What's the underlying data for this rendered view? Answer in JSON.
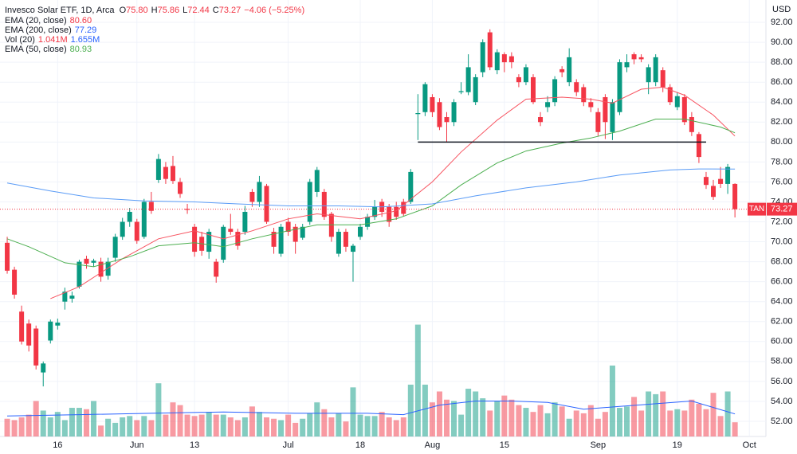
{
  "chart_data": {
    "type": "candlestick",
    "header": {
      "title": "Invesco Solar ETF, 1D, Arca",
      "ohlc": [
        {
          "key": "O",
          "value": "75.80"
        },
        {
          "key": "H",
          "value": "75.86"
        },
        {
          "key": "L",
          "value": "72.44"
        },
        {
          "key": "C",
          "value": "73.27"
        }
      ],
      "change": "−4.06 (−5.25%)"
    },
    "legend": [
      {
        "name": "EMA (20, close)",
        "values": [
          "80.60"
        ],
        "color": "#f23645"
      },
      {
        "name": "EMA (200, close)",
        "values": [
          "77.29"
        ],
        "color": "#2962ff"
      },
      {
        "name": "Vol (20)",
        "values": [
          "1.041M",
          "1.655M"
        ],
        "color": "#2962ff"
      },
      {
        "name": "EMA (50, close)",
        "values": [
          "80.93"
        ],
        "color": "#4caf50"
      }
    ],
    "currency": "USD",
    "up_color": "#089981",
    "down_color": "#f23645",
    "xlim": [
      -1,
      105.3
    ],
    "ylim": [
      50.48,
      94.24
    ],
    "vlim": [
      0,
      32
    ],
    "yticks": [
      {
        "value": 52,
        "label": "52.00"
      },
      {
        "value": 54,
        "label": "54.00"
      },
      {
        "value": 56,
        "label": "56.00"
      },
      {
        "value": 58,
        "label": "58.00"
      },
      {
        "value": 60,
        "label": "60.00"
      },
      {
        "value": 62,
        "label": "62.00"
      },
      {
        "value": 64,
        "label": "64.00"
      },
      {
        "value": 66,
        "label": "66.00"
      },
      {
        "value": 68,
        "label": "68.00"
      },
      {
        "value": 70,
        "label": "70.00"
      },
      {
        "value": 72,
        "label": "72.00"
      },
      {
        "value": 74,
        "label": "74.00"
      },
      {
        "value": 76,
        "label": "76.00"
      },
      {
        "value": 78,
        "label": "78.00"
      },
      {
        "value": 80,
        "label": "80.00"
      },
      {
        "value": 82,
        "label": "82.00"
      },
      {
        "value": 84,
        "label": "84.00"
      },
      {
        "value": 86,
        "label": "86.00"
      },
      {
        "value": 88,
        "label": "88.00"
      },
      {
        "value": 90,
        "label": "90.00"
      },
      {
        "value": 92,
        "label": "92.00"
      }
    ],
    "xticks": [
      {
        "value": 7,
        "label": "16"
      },
      {
        "value": 18,
        "label": "Jun"
      },
      {
        "value": 26,
        "label": "13"
      },
      {
        "value": 39,
        "label": "Jul"
      },
      {
        "value": 49,
        "label": "18"
      },
      {
        "value": 59,
        "label": "Aug"
      },
      {
        "value": 69,
        "label": "15"
      },
      {
        "value": 82,
        "label": "Sep"
      },
      {
        "value": 93,
        "label": "19"
      },
      {
        "value": 103,
        "label": "Oct"
      }
    ],
    "grid": true,
    "candles": [
      {
        "o": 69.9,
        "h": 70.5,
        "l": 66.8,
        "c": 67.1,
        "v": 1.3
      },
      {
        "o": 67.2,
        "h": 67.5,
        "l": 64.3,
        "c": 64.7,
        "v": 1.2
      },
      {
        "o": 63.0,
        "h": 63.6,
        "l": 59.7,
        "c": 60.0,
        "v": 1.4
      },
      {
        "o": 61.8,
        "h": 62.2,
        "l": 59.0,
        "c": 59.6,
        "v": 1.6
      },
      {
        "o": 61.3,
        "h": 61.6,
        "l": 57.2,
        "c": 57.6,
        "v": 2.6
      },
      {
        "o": 56.9,
        "h": 58.0,
        "l": 55.5,
        "c": 57.8,
        "v": 1.9
      },
      {
        "o": 60.1,
        "h": 62.2,
        "l": 59.8,
        "c": 62.0,
        "v": 1.4
      },
      {
        "o": 61.6,
        "h": 62.3,
        "l": 61.2,
        "c": 61.9,
        "v": 1.8
      },
      {
        "o": 64.0,
        "h": 65.4,
        "l": 63.2,
        "c": 65.0,
        "v": 1.2
      },
      {
        "o": 64.3,
        "h": 65.0,
        "l": 63.9,
        "c": 64.6,
        "v": 2.1
      },
      {
        "o": 65.5,
        "h": 68.2,
        "l": 65.3,
        "c": 68.0,
        "v": 2.1
      },
      {
        "o": 68.3,
        "h": 68.6,
        "l": 67.3,
        "c": 67.8,
        "v": 2.0
      },
      {
        "o": 67.9,
        "h": 68.3,
        "l": 67.5,
        "c": 68.1,
        "v": 2.6
      },
      {
        "o": 68.0,
        "h": 68.4,
        "l": 66.0,
        "c": 66.5,
        "v": 0.8
      },
      {
        "o": 66.6,
        "h": 68.4,
        "l": 66.2,
        "c": 68.0,
        "v": 1.3
      },
      {
        "o": 68.4,
        "h": 70.8,
        "l": 68.0,
        "c": 70.5,
        "v": 1.0
      },
      {
        "o": 70.5,
        "h": 72.4,
        "l": 70.2,
        "c": 72.0,
        "v": 1.4
      },
      {
        "o": 72.0,
        "h": 73.4,
        "l": 71.5,
        "c": 73.0,
        "v": 1.5
      },
      {
        "o": 72.0,
        "h": 72.3,
        "l": 69.8,
        "c": 70.1,
        "v": 1.2
      },
      {
        "o": 70.5,
        "h": 74.3,
        "l": 70.3,
        "c": 74.0,
        "v": 1.5
      },
      {
        "o": 74.0,
        "h": 75.0,
        "l": 72.8,
        "c": 73.1,
        "v": 1.2
      },
      {
        "o": 76.2,
        "h": 78.8,
        "l": 75.9,
        "c": 78.3,
        "v": 3.9
      },
      {
        "o": 77.5,
        "h": 78.0,
        "l": 75.8,
        "c": 76.3,
        "v": 1.6
      },
      {
        "o": 77.6,
        "h": 78.6,
        "l": 75.8,
        "c": 76.1,
        "v": 2.5
      },
      {
        "o": 76.0,
        "h": 76.4,
        "l": 74.4,
        "c": 74.8,
        "v": 2.3
      },
      {
        "o": 73.3,
        "h": 73.8,
        "l": 72.8,
        "c": 73.2,
        "v": 1.6
      },
      {
        "o": 71.5,
        "h": 71.8,
        "l": 68.5,
        "c": 69.0,
        "v": 1.5
      },
      {
        "o": 70.5,
        "h": 71.0,
        "l": 68.6,
        "c": 69.1,
        "v": 1.6
      },
      {
        "o": 69.0,
        "h": 71.3,
        "l": 68.3,
        "c": 71.0,
        "v": 1.8
      },
      {
        "o": 68.0,
        "h": 68.3,
        "l": 65.9,
        "c": 66.5,
        "v": 1.6
      },
      {
        "o": 68.2,
        "h": 71.7,
        "l": 67.9,
        "c": 71.5,
        "v": 1.6
      },
      {
        "o": 71.3,
        "h": 72.8,
        "l": 70.7,
        "c": 71.0,
        "v": 1.4
      },
      {
        "o": 71.0,
        "h": 71.3,
        "l": 69.2,
        "c": 69.6,
        "v": 1.2
      },
      {
        "o": 71.0,
        "h": 73.6,
        "l": 70.7,
        "c": 73.0,
        "v": 1.4
      },
      {
        "o": 75.0,
        "h": 75.3,
        "l": 73.5,
        "c": 74.0,
        "v": 2.2
      },
      {
        "o": 74.0,
        "h": 76.6,
        "l": 73.5,
        "c": 76.0,
        "v": 1.8
      },
      {
        "o": 75.6,
        "h": 75.8,
        "l": 71.8,
        "c": 72.0,
        "v": 1.4
      },
      {
        "o": 71.0,
        "h": 71.4,
        "l": 68.8,
        "c": 69.5,
        "v": 1.3
      },
      {
        "o": 68.8,
        "h": 71.8,
        "l": 68.5,
        "c": 71.5,
        "v": 1.2
      },
      {
        "o": 72.0,
        "h": 72.4,
        "l": 70.6,
        "c": 71.0,
        "v": 1.6
      },
      {
        "o": 71.5,
        "h": 71.8,
        "l": 68.8,
        "c": 70.0,
        "v": 1.0
      },
      {
        "o": 70.4,
        "h": 71.8,
        "l": 70.2,
        "c": 71.5,
        "v": 1.3
      },
      {
        "o": 72.0,
        "h": 76.3,
        "l": 71.7,
        "c": 76.0,
        "v": 1.7
      },
      {
        "o": 75.0,
        "h": 77.5,
        "l": 74.5,
        "c": 77.2,
        "v": 2.5
      },
      {
        "o": 75.0,
        "h": 75.3,
        "l": 72.2,
        "c": 72.5,
        "v": 2.0
      },
      {
        "o": 72.8,
        "h": 73.0,
        "l": 70.0,
        "c": 70.5,
        "v": 1.4
      },
      {
        "o": 68.8,
        "h": 71.3,
        "l": 68.5,
        "c": 71.0,
        "v": 1.7
      },
      {
        "o": 71.0,
        "h": 71.3,
        "l": 69.0,
        "c": 69.5,
        "v": 1.1
      },
      {
        "o": 69.0,
        "h": 69.8,
        "l": 66.0,
        "c": 69.6,
        "v": 3.6
      },
      {
        "o": 70.5,
        "h": 71.8,
        "l": 70.2,
        "c": 71.5,
        "v": 1.6
      },
      {
        "o": 71.5,
        "h": 72.8,
        "l": 71.2,
        "c": 72.5,
        "v": 1.5
      },
      {
        "o": 72.5,
        "h": 74.2,
        "l": 72.2,
        "c": 73.5,
        "v": 1.5
      },
      {
        "o": 74.0,
        "h": 74.3,
        "l": 72.5,
        "c": 73.0,
        "v": 1.8
      },
      {
        "o": 73.5,
        "h": 73.8,
        "l": 71.5,
        "c": 72.0,
        "v": 1.4
      },
      {
        "o": 73.5,
        "h": 74.0,
        "l": 72.2,
        "c": 72.5,
        "v": 1.2
      },
      {
        "o": 74.0,
        "h": 74.3,
        "l": 72.6,
        "c": 72.8,
        "v": 1.4
      },
      {
        "o": 74.0,
        "h": 77.3,
        "l": 73.8,
        "c": 77.0,
        "v": 3.8
      },
      {
        "o": 82.8,
        "h": 84.8,
        "l": 80.2,
        "c": 82.9,
        "v": 8.2
      },
      {
        "o": 83.0,
        "h": 86.0,
        "l": 82.6,
        "c": 85.8,
        "v": 3.8
      },
      {
        "o": 84.5,
        "h": 84.8,
        "l": 82.5,
        "c": 83.0,
        "v": 2.5
      },
      {
        "o": 84.0,
        "h": 84.4,
        "l": 81.2,
        "c": 81.5,
        "v": 3.3
      },
      {
        "o": 82.5,
        "h": 83.0,
        "l": 80.0,
        "c": 82.0,
        "v": 2.7
      },
      {
        "o": 82.0,
        "h": 84.3,
        "l": 81.6,
        "c": 84.0,
        "v": 2.6
      },
      {
        "o": 85.0,
        "h": 86.0,
        "l": 84.8,
        "c": 85.1,
        "v": 1.6
      },
      {
        "o": 85.0,
        "h": 88.8,
        "l": 84.7,
        "c": 87.5,
        "v": 3.5
      },
      {
        "o": 84.0,
        "h": 86.8,
        "l": 83.7,
        "c": 86.5,
        "v": 3.3
      },
      {
        "o": 87.0,
        "h": 90.3,
        "l": 86.5,
        "c": 90.0,
        "v": 2.8
      },
      {
        "o": 91.0,
        "h": 91.3,
        "l": 87.2,
        "c": 87.5,
        "v": 1.9
      },
      {
        "o": 87.2,
        "h": 89.3,
        "l": 86.8,
        "c": 89.0,
        "v": 2.6
      },
      {
        "o": 88.8,
        "h": 89.0,
        "l": 87.0,
        "c": 88.0,
        "v": 3.0
      },
      {
        "o": 88.6,
        "h": 89.0,
        "l": 87.4,
        "c": 88.0,
        "v": 2.7
      },
      {
        "o": 86.5,
        "h": 86.8,
        "l": 85.5,
        "c": 86.0,
        "v": 2.3
      },
      {
        "o": 86.0,
        "h": 87.8,
        "l": 85.7,
        "c": 87.5,
        "v": 2.1
      },
      {
        "o": 86.5,
        "h": 86.8,
        "l": 83.8,
        "c": 84.0,
        "v": 1.8
      },
      {
        "o": 82.5,
        "h": 83.0,
        "l": 81.6,
        "c": 82.0,
        "v": 2.3
      },
      {
        "o": 83.5,
        "h": 84.6,
        "l": 83.0,
        "c": 84.0,
        "v": 1.7
      },
      {
        "o": 84.0,
        "h": 86.6,
        "l": 83.6,
        "c": 86.3,
        "v": 2.5
      },
      {
        "o": 87.3,
        "h": 87.6,
        "l": 86.5,
        "c": 87.0,
        "v": 2.2
      },
      {
        "o": 86.0,
        "h": 89.4,
        "l": 85.6,
        "c": 88.5,
        "v": 1.3
      },
      {
        "o": 86.0,
        "h": 86.3,
        "l": 84.6,
        "c": 85.0,
        "v": 1.9
      },
      {
        "o": 85.5,
        "h": 85.8,
        "l": 83.6,
        "c": 84.0,
        "v": 1.7
      },
      {
        "o": 84.0,
        "h": 84.4,
        "l": 83.0,
        "c": 83.5,
        "v": 2.3
      },
      {
        "o": 83.0,
        "h": 83.4,
        "l": 80.6,
        "c": 81.0,
        "v": 1.3
      },
      {
        "o": 84.5,
        "h": 84.8,
        "l": 80.3,
        "c": 82.0,
        "v": 1.8
      },
      {
        "o": 81.0,
        "h": 84.3,
        "l": 80.2,
        "c": 84.0,
        "v": 5.2
      },
      {
        "o": 83.0,
        "h": 88.3,
        "l": 82.7,
        "c": 88.0,
        "v": 2.1
      },
      {
        "o": 87.5,
        "h": 88.8,
        "l": 87.0,
        "c": 88.0,
        "v": 2.2
      },
      {
        "o": 88.8,
        "h": 89.0,
        "l": 87.8,
        "c": 88.3,
        "v": 2.9
      },
      {
        "o": 88.5,
        "h": 88.8,
        "l": 88.0,
        "c": 88.3,
        "v": 1.9
      },
      {
        "o": 86.0,
        "h": 87.8,
        "l": 84.8,
        "c": 87.5,
        "v": 3.3
      },
      {
        "o": 86.0,
        "h": 88.8,
        "l": 85.6,
        "c": 88.5,
        "v": 3.1
      },
      {
        "o": 87.2,
        "h": 87.5,
        "l": 85.0,
        "c": 85.5,
        "v": 3.3
      },
      {
        "o": 85.5,
        "h": 85.8,
        "l": 83.7,
        "c": 84.0,
        "v": 1.9
      },
      {
        "o": 83.5,
        "h": 85.0,
        "l": 83.2,
        "c": 84.6,
        "v": 2.0
      },
      {
        "o": 84.5,
        "h": 84.8,
        "l": 81.7,
        "c": 82.0,
        "v": 1.9
      },
      {
        "o": 82.5,
        "h": 83.0,
        "l": 80.6,
        "c": 81.0,
        "v": 2.7
      },
      {
        "o": 80.8,
        "h": 81.0,
        "l": 77.9,
        "c": 78.5,
        "v": 2.4
      },
      {
        "o": 76.5,
        "h": 77.0,
        "l": 75.3,
        "c": 75.7,
        "v": 2.0
      },
      {
        "o": 75.6,
        "h": 76.2,
        "l": 74.2,
        "c": 74.5,
        "v": 3.2
      },
      {
        "o": 76.3,
        "h": 77.5,
        "l": 75.4,
        "c": 75.8,
        "v": 1.5
      },
      {
        "o": 75.8,
        "h": 77.8,
        "l": 74.8,
        "c": 77.5,
        "v": 3.3
      },
      {
        "o": 75.8,
        "h": 75.86,
        "l": 72.44,
        "c": 73.27,
        "v": 1.041
      }
    ],
    "series": [
      {
        "name": "EMA (20, close)",
        "color": "#f7525f",
        "axis": "price",
        "x": [
          6,
          10,
          16,
          21,
          26,
          30,
          34,
          39,
          43,
          49,
          54,
          59,
          63,
          68,
          72,
          77,
          81,
          84,
          88,
          91,
          94,
          98,
          101
        ],
        "values": [
          64.3,
          65.5,
          68.3,
          70.3,
          71.1,
          70.3,
          71.1,
          72.3,
          72.8,
          72.3,
          73.1,
          76.0,
          79.0,
          82.2,
          84.3,
          84.5,
          84.3,
          83.9,
          85.3,
          85.5,
          84.7,
          82.7,
          80.6
        ]
      },
      {
        "name": "EMA (50, close)",
        "color": "#4caf50",
        "axis": "price",
        "x": [
          0,
          3,
          8,
          12,
          17,
          21,
          26,
          30,
          34,
          39,
          43,
          49,
          54,
          59,
          63,
          68,
          72,
          77,
          81,
          85,
          90,
          94,
          99,
          101
        ],
        "values": [
          70.3,
          69.5,
          67.9,
          67.5,
          68.5,
          69.6,
          69.9,
          69.5,
          70.3,
          71.1,
          71.7,
          71.7,
          72.3,
          73.6,
          75.7,
          77.9,
          79.1,
          79.9,
          80.4,
          81.1,
          82.3,
          82.3,
          81.5,
          80.93
        ]
      },
      {
        "name": "EMA (200, close)",
        "color": "#5b9cf6",
        "axis": "price",
        "x": [
          0,
          6,
          12,
          19,
          26,
          32,
          39,
          46,
          52,
          59,
          65,
          72,
          79,
          85,
          92,
          96,
          101
        ],
        "values": [
          75.9,
          75.1,
          74.4,
          74.1,
          74.0,
          73.8,
          73.6,
          73.6,
          73.5,
          73.8,
          74.6,
          75.4,
          76.0,
          76.7,
          77.2,
          77.3,
          77.29
        ]
      },
      {
        "name": "Vol (20)",
        "color": "#2962ff",
        "axis": "volume",
        "x": [
          0,
          10,
          20,
          30,
          40,
          50,
          55,
          60,
          65,
          70,
          75,
          80,
          85,
          90,
          95,
          101
        ],
        "values": [
          1.5,
          1.6,
          1.7,
          1.8,
          1.7,
          1.7,
          1.6,
          2.3,
          2.6,
          2.6,
          2.5,
          2.0,
          2.2,
          2.4,
          2.6,
          1.655
        ]
      }
    ],
    "horizontal_line": {
      "price": 80,
      "from": 57,
      "to": 97
    },
    "last_price": {
      "symbol": "TAN",
      "value": 73.27,
      "label": "73.27"
    }
  }
}
